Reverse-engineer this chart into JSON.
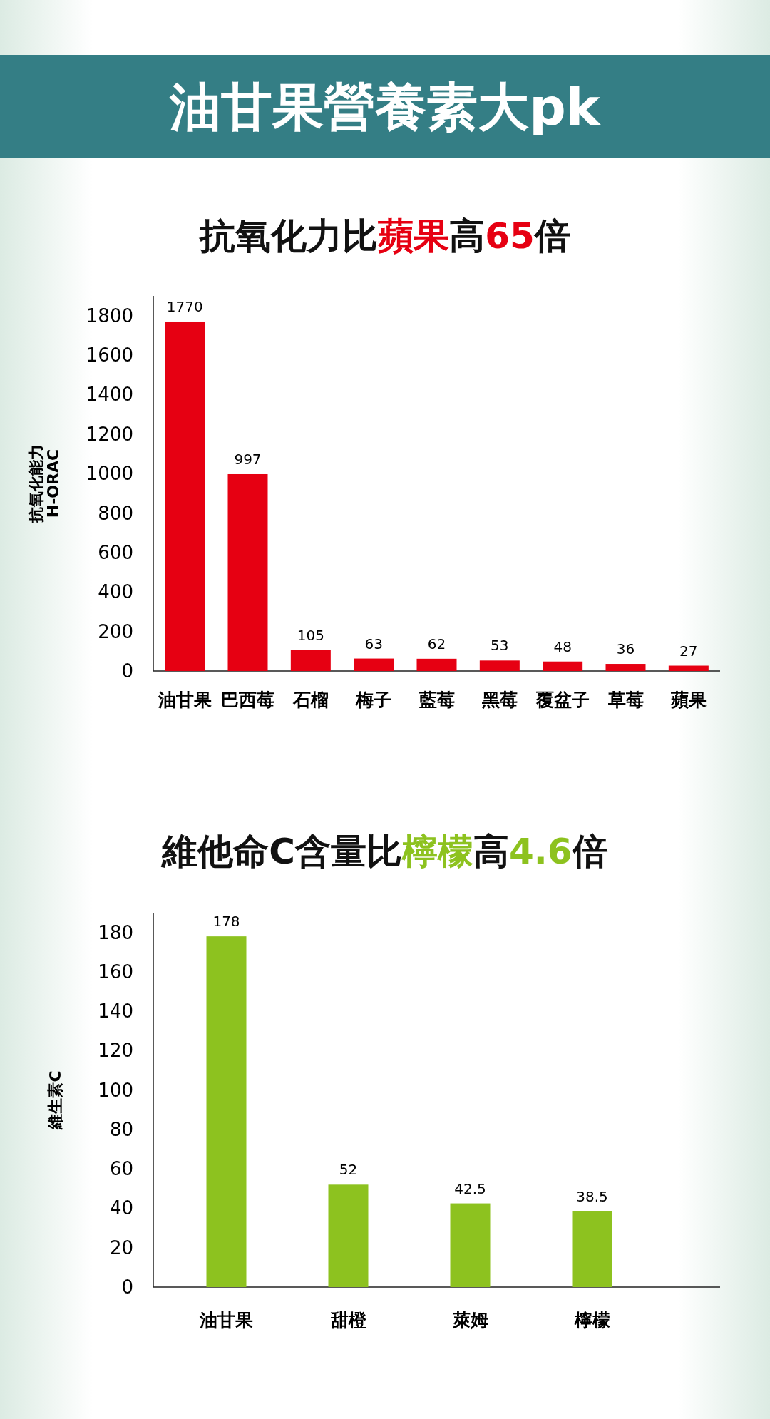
{
  "chart_data": [
    {
      "type": "bar",
      "title": "油甘果營養素大pk",
      "subtitle": "抗氧化力比**蘋果**高**65**倍",
      "ylabel": "抗氧化能力 H-ORAC",
      "categories": [
        "油甘果",
        "巴西莓",
        "石榴",
        "梅子",
        "藍莓",
        "黑莓",
        "覆盆子",
        "草莓",
        "蘋果"
      ],
      "values": [
        1770,
        997,
        105,
        63,
        62,
        53,
        48,
        36,
        27
      ],
      "color": "#e60012",
      "ylim": [
        0,
        1900
      ],
      "yticks": [
        0,
        200,
        400,
        600,
        800,
        1000,
        1200,
        1400,
        1600,
        1800
      ],
      "data_labels": true
    },
    {
      "type": "bar",
      "subtitle": "維他命C含量比**檸檬**高**4.6**倍",
      "ylabel": "維生素C",
      "categories": [
        "油甘果",
        "甜橙",
        "萊姆",
        "檸檬"
      ],
      "values": [
        178,
        52,
        42.5,
        38.5
      ],
      "color": "#8dc21f",
      "ylim": [
        0,
        190
      ],
      "yticks": [
        0,
        20,
        40,
        60,
        80,
        100,
        120,
        140,
        160,
        180
      ],
      "data_labels": true
    }
  ]
}
